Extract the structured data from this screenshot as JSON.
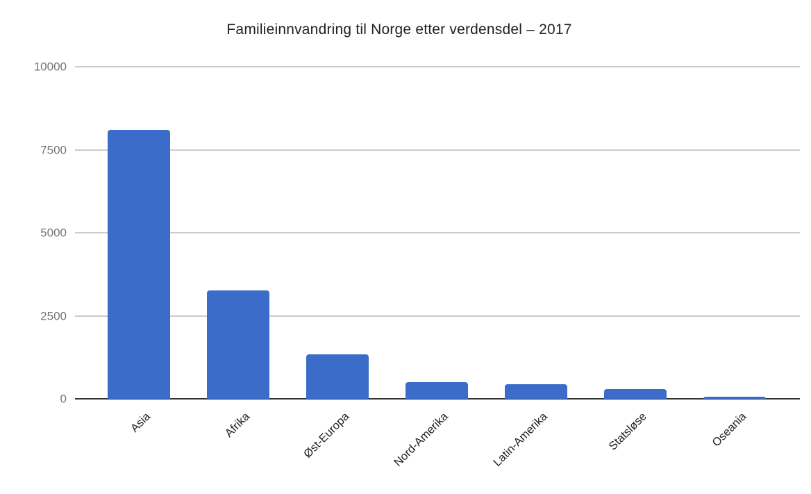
{
  "chart_data": {
    "type": "bar",
    "title": "Familieinnvandring til Norge etter verdensdel – 2017",
    "categories": [
      "Asia",
      "Afrika",
      "Øst-Europa",
      "Nord-Amerika",
      "Latin-Amerika",
      "Statsløse",
      "Oseania"
    ],
    "values": [
      8100,
      3260,
      1340,
      510,
      430,
      290,
      60
    ],
    "xlabel": "",
    "ylabel": "",
    "ylim": [
      0,
      10000
    ],
    "yticks": [
      0,
      2500,
      5000,
      7500,
      10000
    ],
    "grid": true,
    "legend": "none",
    "colors": {
      "bar": "#3b6cc9",
      "gridline": "#cccccc",
      "axis_baseline": "#333333",
      "y_tick_label": "#757575",
      "x_tick_label": "#212121",
      "title": "#212121"
    }
  }
}
